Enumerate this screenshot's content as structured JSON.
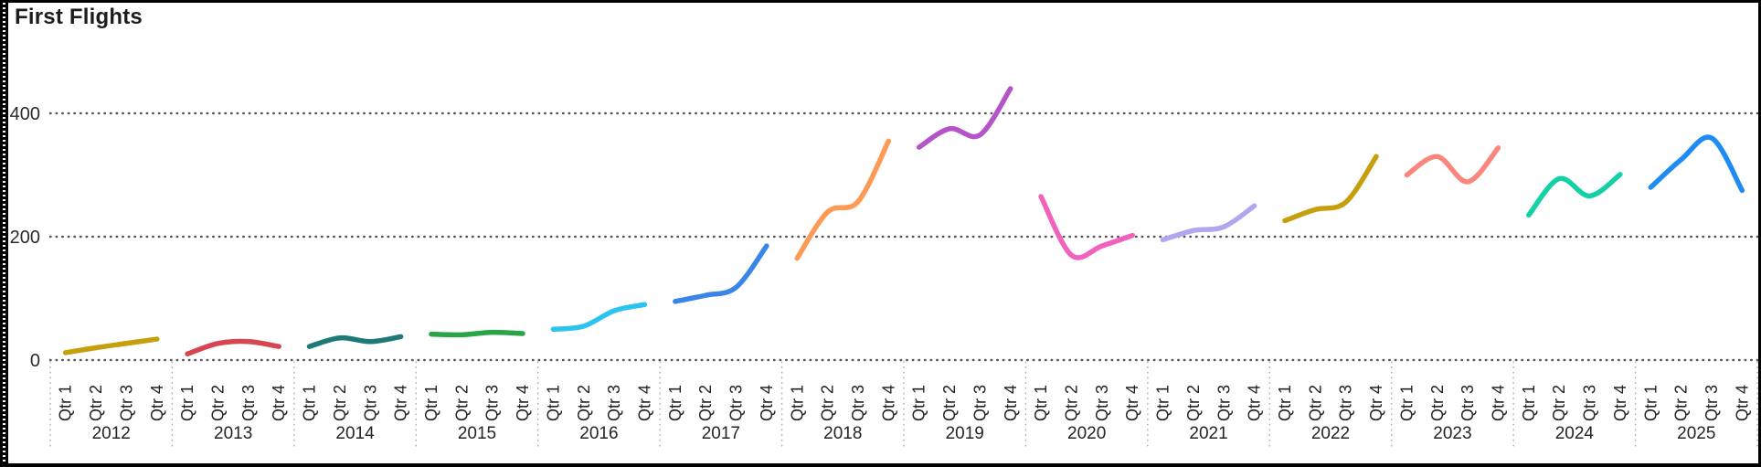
{
  "title": "First Flights",
  "chart_data": {
    "type": "line",
    "title": "First Flights",
    "grid": "horizontal-dotted",
    "legend": "none",
    "quarter_labels": [
      "Qtr 1",
      "Qtr 2",
      "Qtr 3",
      "Qtr 4"
    ],
    "yticks": [
      0,
      200,
      400
    ],
    "ylim": [
      0,
      460
    ],
    "note_layout": "each year is an independent smooth line segment over its own x band; segments do not connect across years",
    "axis_text_color": "#252423",
    "gridline_color": "#555555",
    "separator_color": "#b5b5b5",
    "series": [
      {
        "year": "2012",
        "color": "#C6A00C",
        "values": [
          12,
          20,
          27,
          34
        ]
      },
      {
        "year": "2013",
        "color": "#D64550",
        "values": [
          10,
          27,
          30,
          22
        ]
      },
      {
        "year": "2014",
        "color": "#1E7A76",
        "values": [
          22,
          36,
          30,
          38
        ]
      },
      {
        "year": "2015",
        "color": "#28A546",
        "values": [
          42,
          41,
          45,
          43
        ]
      },
      {
        "year": "2016",
        "color": "#2DC3F0",
        "values": [
          50,
          55,
          80,
          90
        ]
      },
      {
        "year": "2017",
        "color": "#3A86E8",
        "values": [
          95,
          105,
          118,
          185
        ]
      },
      {
        "year": "2018",
        "color": "#FC9A56",
        "values": [
          165,
          240,
          257,
          355
        ]
      },
      {
        "year": "2019",
        "color": "#B454C8",
        "values": [
          345,
          375,
          365,
          440
        ]
      },
      {
        "year": "2020",
        "color": "#F261BB",
        "values": [
          265,
          170,
          185,
          202
        ]
      },
      {
        "year": "2021",
        "color": "#B2A7EE",
        "values": [
          195,
          210,
          216,
          250
        ]
      },
      {
        "year": "2022",
        "color": "#C6A00C",
        "values": [
          226,
          244,
          256,
          330
        ]
      },
      {
        "year": "2023",
        "color": "#FA867E",
        "values": [
          300,
          330,
          289,
          344
        ]
      },
      {
        "year": "2024",
        "color": "#14D0A5",
        "values": [
          235,
          294,
          266,
          301
        ]
      },
      {
        "year": "2025",
        "color": "#1E8CF2",
        "values": [
          280,
          325,
          360,
          275
        ]
      }
    ]
  }
}
